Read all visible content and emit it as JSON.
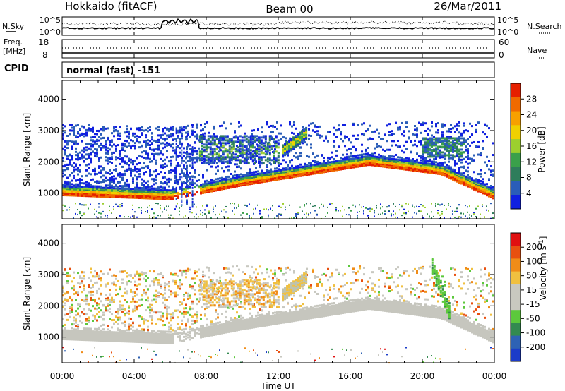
{
  "header": {
    "station": "Hokkaido (fitACF)",
    "beam": "Beam 00",
    "date": "26/Mar/2011"
  },
  "status_panel": {
    "nsky_label": "N.Sky",
    "nsky_ticks": [
      "10^5",
      "10^0"
    ],
    "nsearch_label": "N.Search",
    "nsearch_ticks": [
      "10^5",
      "10^0"
    ],
    "freq_label": "Freq.",
    "freq_unit": "[MHz]",
    "freq_ticks": [
      "18",
      "8"
    ],
    "nave_label": "Nave",
    "nave_ticks": [
      "60",
      "0"
    ],
    "cpid_label": "CPID",
    "cpid_value": "normal (fast) -151"
  },
  "time_axis": {
    "label": "Time UT",
    "tick_labels": [
      "00:00",
      "04:00",
      "08:00",
      "12:00",
      "16:00",
      "20:00",
      "00:00"
    ],
    "range_hours": [
      0,
      24
    ]
  },
  "chart_data": [
    {
      "type": "heatmap",
      "panel": "power",
      "ylabel": "Slant Range [km]",
      "ylim": [
        180,
        4600
      ],
      "y_ticks": [
        1000,
        2000,
        3000,
        4000
      ],
      "colorbar_label": "Power [dB]",
      "colorbar_ticks": [
        "28",
        "24",
        "20",
        "16",
        "12",
        "8",
        "4"
      ],
      "colorbar_colors": [
        "#1020e0",
        "#2a5db8",
        "#2e7d5b",
        "#3aa04a",
        "#9ccf2e",
        "#f0d000",
        "#f7a000",
        "#f06a00",
        "#e62000"
      ],
      "structures": [
        {
          "name": "ground scatter band",
          "range_start_km": [
            1180,
            1050,
            1500,
            2150,
            1850,
            1050
          ],
          "range_end_km": [
            1180,
            1200,
            1650,
            2250,
            2000,
            1150
          ],
          "hours": [
            0,
            6,
            10,
            17,
            21,
            24
          ]
        },
        {
          "name": "ionospheric echoes",
          "hours": [
            7.5,
            12
          ],
          "range_km": [
            2000,
            3000
          ]
        },
        {
          "name": "ionospheric echoes",
          "hours": [
            12,
            13.5
          ],
          "range_km": [
            2300,
            3100
          ]
        },
        {
          "name": "ionospheric echoes",
          "hours": [
            0,
            7
          ],
          "range_km": [
            1500,
            3200
          ]
        },
        {
          "name": "ionospheric echoes",
          "hours": [
            20,
            22.3
          ],
          "range_km": [
            2000,
            2700
          ]
        }
      ]
    },
    {
      "type": "heatmap",
      "panel": "velocity",
      "ylabel": "Slant Range [km]",
      "ylim": [
        180,
        4600
      ],
      "y_ticks": [
        1000,
        2000,
        3000,
        4000
      ],
      "colorbar_label": "Velocity [m s^-1]",
      "colorbar_ticks": [
        "200",
        "100",
        "50",
        "15",
        "-15",
        "-50",
        "-100",
        "-200"
      ],
      "colorbar_colors": [
        "#1c3cc8",
        "#2e62b4",
        "#338a50",
        "#5cc83c",
        "#c8c8c0",
        "#c8c8c0",
        "#f0c040",
        "#f08c18",
        "#e85010",
        "#e01010"
      ],
      "structures": [
        {
          "name": "ground scatter (grey)",
          "range_start_km": [
            1180,
            1050,
            1500,
            2150,
            1850,
            1050
          ],
          "range_end_km": [
            1180,
            1200,
            1650,
            2250,
            2000,
            1150
          ],
          "hours": [
            0,
            6,
            10,
            17,
            21,
            24
          ]
        },
        {
          "name": "positive velocity patch",
          "hours": [
            20.5,
            21.5
          ],
          "range_km": [
            1500,
            3600
          ]
        }
      ]
    }
  ]
}
